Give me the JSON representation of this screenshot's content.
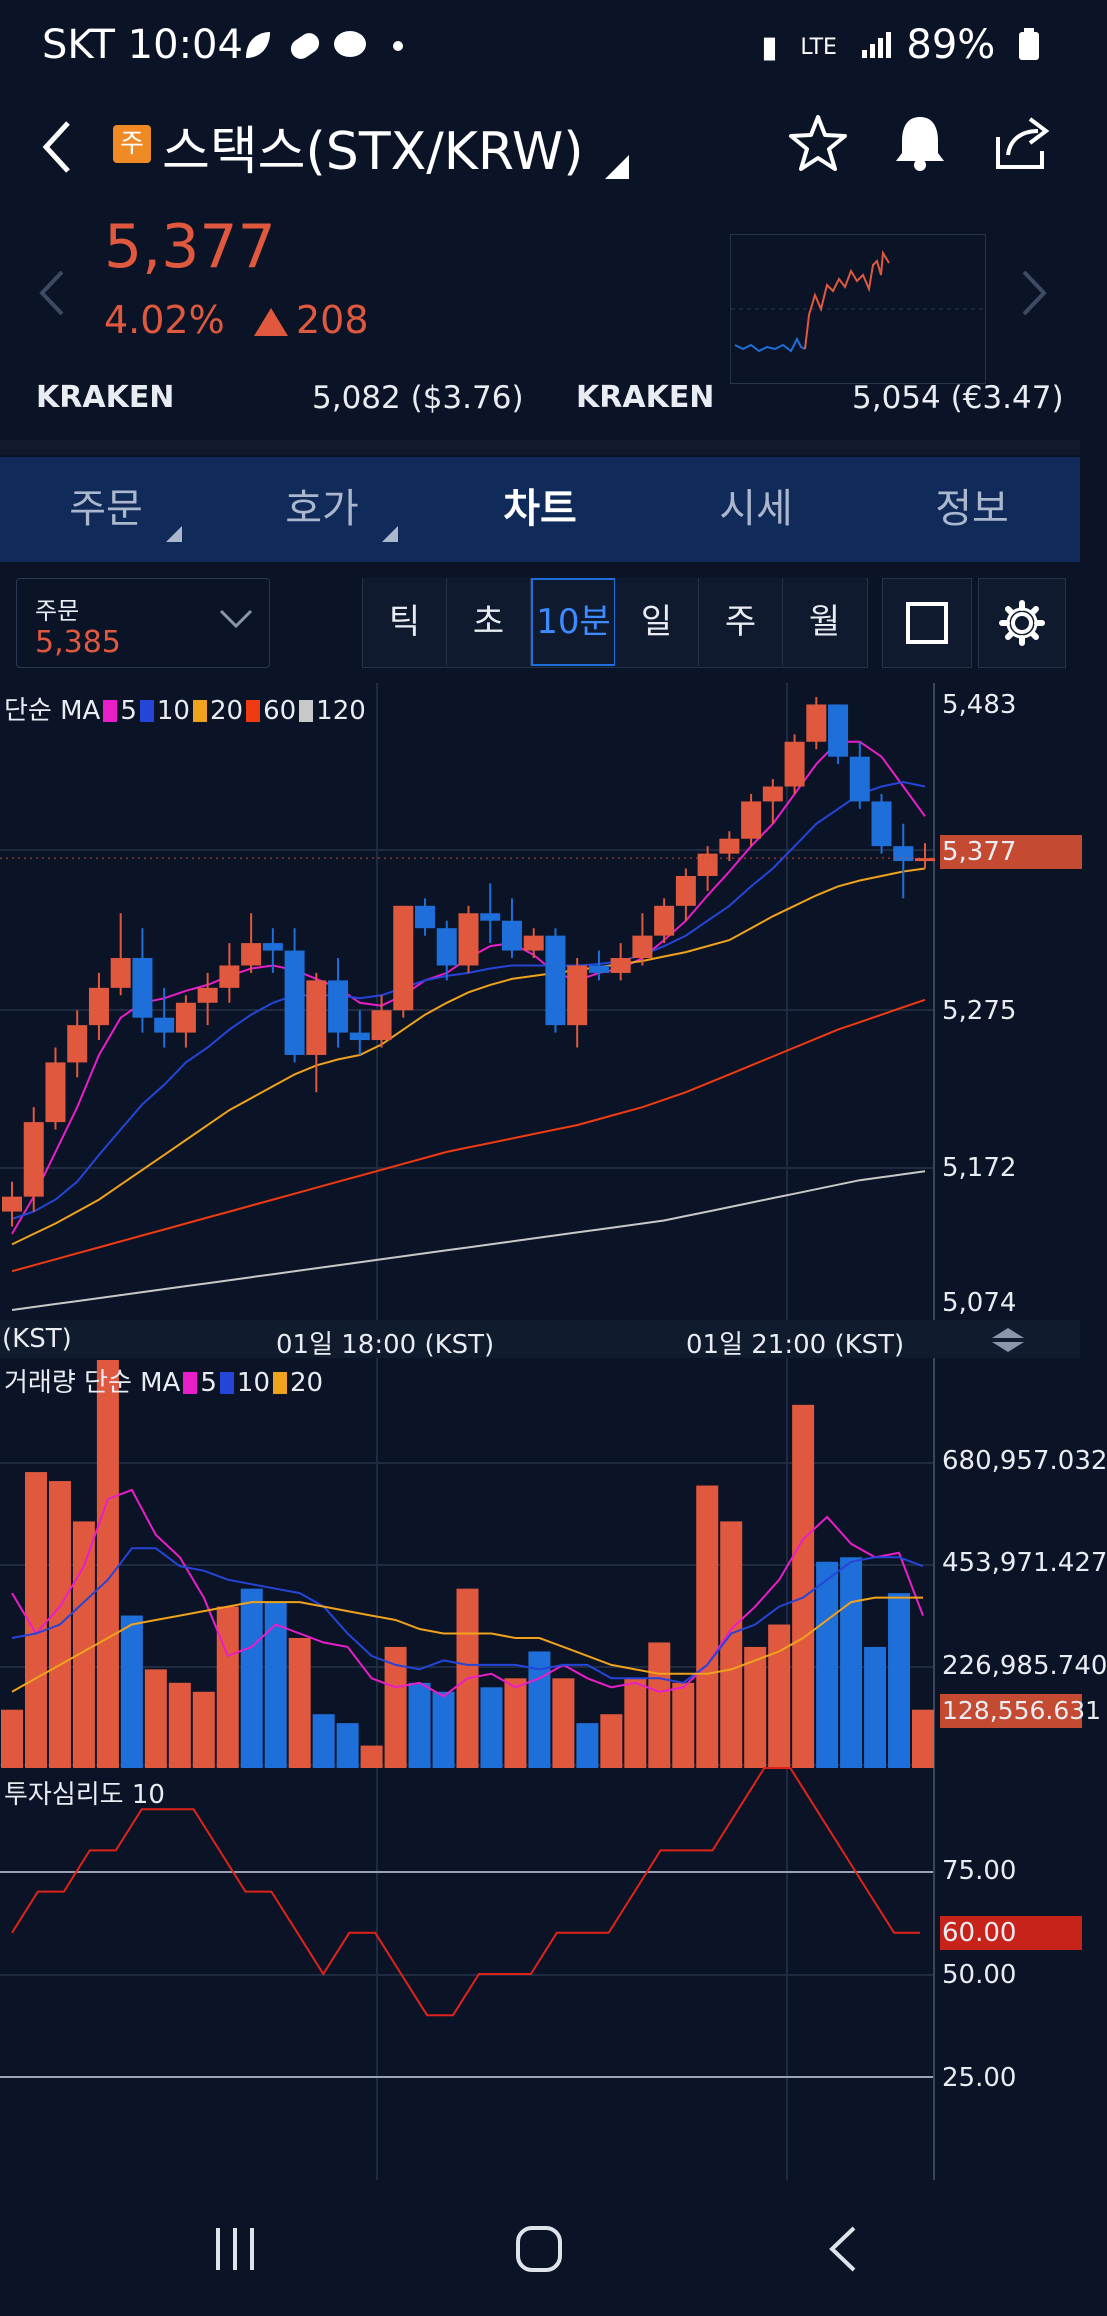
{
  "status": {
    "carrier_time": "SKT 10:04",
    "network": "LTE",
    "battery": "89%"
  },
  "header": {
    "badge": "주",
    "title": "스택스(STX/KRW)"
  },
  "quote": {
    "price": "5,377",
    "change_pct": "4.02%",
    "change_abs": "208"
  },
  "exchanges": [
    {
      "name": "KRAKEN",
      "value": "5,082 ($3.76)"
    },
    {
      "name": "KRAKEN",
      "value": "5,054 (€3.47)"
    }
  ],
  "tabs": [
    {
      "label": "주문"
    },
    {
      "label": "호가"
    },
    {
      "label": "차트"
    },
    {
      "label": "시세"
    },
    {
      "label": "정보"
    }
  ],
  "toolbar": {
    "order_label": "주문",
    "order_price": "5,385",
    "periods": [
      "틱",
      "초",
      "10분",
      "일",
      "주",
      "월"
    ],
    "selected_period": "10분"
  },
  "colors": {
    "up": "#e0593f",
    "down": "#1e6fd9",
    "ma5": "#e91ec9",
    "ma10": "#2545d8",
    "ma20": "#f0a21c",
    "ma60": "#f03a12",
    "ma120": "#c8c8c8"
  },
  "chart_data": [
    {
      "type": "candlestick",
      "legend": {
        "prefix": "단순 MA",
        "items": [
          "5",
          "10",
          "20",
          "60",
          "120"
        ]
      },
      "yticks": [
        "5,483",
        "5,275",
        "5,172",
        "5,074"
      ],
      "current_label": "5,377",
      "ylim": [
        5074,
        5483
      ],
      "xticks": [
        "(KST)",
        "01일 18:00 (KST)",
        "01일 21:00 (KST)"
      ],
      "candles": [
        [
          5140,
          5160,
          5130,
          5150
        ],
        [
          5150,
          5210,
          5140,
          5200
        ],
        [
          5200,
          5250,
          5195,
          5240
        ],
        [
          5240,
          5275,
          5230,
          5265
        ],
        [
          5265,
          5300,
          5255,
          5290
        ],
        [
          5290,
          5340,
          5285,
          5310
        ],
        [
          5310,
          5330,
          5260,
          5270
        ],
        [
          5270,
          5290,
          5250,
          5260
        ],
        [
          5260,
          5285,
          5250,
          5280
        ],
        [
          5280,
          5300,
          5265,
          5290
        ],
        [
          5290,
          5320,
          5280,
          5305
        ],
        [
          5305,
          5340,
          5300,
          5320
        ],
        [
          5320,
          5330,
          5300,
          5315
        ],
        [
          5315,
          5330,
          5240,
          5245
        ],
        [
          5245,
          5300,
          5220,
          5295
        ],
        [
          5295,
          5310,
          5250,
          5260
        ],
        [
          5260,
          5275,
          5245,
          5255
        ],
        [
          5255,
          5285,
          5250,
          5275
        ],
        [
          5275,
          5345,
          5270,
          5345
        ],
        [
          5345,
          5350,
          5325,
          5330
        ],
        [
          5330,
          5335,
          5295,
          5305
        ],
        [
          5305,
          5345,
          5300,
          5340
        ],
        [
          5340,
          5360,
          5320,
          5335
        ],
        [
          5335,
          5350,
          5310,
          5315
        ],
        [
          5315,
          5330,
          5310,
          5325
        ],
        [
          5325,
          5330,
          5260,
          5265
        ],
        [
          5265,
          5310,
          5250,
          5305
        ],
        [
          5305,
          5315,
          5295,
          5300
        ],
        [
          5300,
          5320,
          5295,
          5310
        ],
        [
          5310,
          5340,
          5305,
          5325
        ],
        [
          5325,
          5350,
          5320,
          5345
        ],
        [
          5345,
          5370,
          5335,
          5365
        ],
        [
          5365,
          5385,
          5355,
          5380
        ],
        [
          5380,
          5395,
          5375,
          5390
        ],
        [
          5390,
          5420,
          5385,
          5415
        ],
        [
          5415,
          5430,
          5400,
          5425
        ],
        [
          5425,
          5460,
          5420,
          5455
        ],
        [
          5455,
          5485,
          5450,
          5480
        ],
        [
          5480,
          5480,
          5440,
          5445
        ],
        [
          5445,
          5455,
          5410,
          5415
        ],
        [
          5415,
          5420,
          5380,
          5385
        ],
        [
          5385,
          5400,
          5350,
          5375
        ],
        [
          5375,
          5387,
          5370,
          5377
        ]
      ],
      "ma": {
        "5": [
          5125,
          5150,
          5180,
          5210,
          5245,
          5270,
          5280,
          5283,
          5288,
          5292,
          5298,
          5303,
          5305,
          5302,
          5296,
          5290,
          5280,
          5278,
          5285,
          5295,
          5300,
          5310,
          5318,
          5320,
          5312,
          5300,
          5295,
          5300,
          5303,
          5310,
          5322,
          5335,
          5352,
          5368,
          5385,
          5400,
          5420,
          5440,
          5455,
          5455,
          5445,
          5425,
          5405
        ],
        "10": [
          5135,
          5140,
          5148,
          5160,
          5178,
          5195,
          5212,
          5225,
          5240,
          5250,
          5262,
          5272,
          5280,
          5285,
          5285,
          5285,
          5283,
          5285,
          5290,
          5295,
          5298,
          5300,
          5303,
          5305,
          5305,
          5305,
          5305,
          5306,
          5308,
          5312,
          5318,
          5325,
          5335,
          5345,
          5358,
          5370,
          5385,
          5400,
          5410,
          5420,
          5425,
          5428,
          5425
        ],
        "20": [
          5118,
          5125,
          5132,
          5140,
          5148,
          5158,
          5168,
          5178,
          5188,
          5198,
          5208,
          5216,
          5224,
          5232,
          5238,
          5242,
          5245,
          5252,
          5262,
          5272,
          5280,
          5287,
          5292,
          5296,
          5298,
          5300,
          5302,
          5304,
          5306,
          5308,
          5311,
          5314,
          5318,
          5322,
          5330,
          5338,
          5345,
          5352,
          5358,
          5362,
          5365,
          5368,
          5370
        ],
        "60": [
          5100,
          5104,
          5108,
          5112,
          5116,
          5120,
          5124,
          5128,
          5132,
          5136,
          5140,
          5144,
          5148,
          5152,
          5156,
          5160,
          5164,
          5168,
          5172,
          5176,
          5180,
          5183,
          5186,
          5189,
          5192,
          5195,
          5198,
          5202,
          5206,
          5210,
          5215,
          5220,
          5226,
          5232,
          5238,
          5244,
          5250,
          5256,
          5262,
          5267,
          5272,
          5277,
          5282
        ],
        "120": [
          5074,
          5076,
          5078,
          5080,
          5082,
          5084,
          5086,
          5088,
          5090,
          5092,
          5094,
          5096,
          5098,
          5100,
          5102,
          5104,
          5106,
          5108,
          5110,
          5112,
          5114,
          5116,
          5118,
          5120,
          5122,
          5124,
          5126,
          5128,
          5130,
          5132,
          5134,
          5137,
          5140,
          5143,
          5146,
          5149,
          5152,
          5155,
          5158,
          5161,
          5163,
          5165,
          5167
        ]
      }
    },
    {
      "type": "bar",
      "legend": {
        "prefix": "거래량 단순 MA",
        "items": [
          "5",
          "10",
          "20"
        ]
      },
      "yticks": [
        "680,957.032",
        "453,971.427",
        "226,985.740"
      ],
      "current_label": "128,556.631",
      "ylim": [
        0,
        910000
      ],
      "values": [
        130000,
        660000,
        640000,
        550000,
        910000,
        340000,
        220000,
        190000,
        170000,
        360000,
        400000,
        370000,
        290000,
        120000,
        100000,
        50000,
        270000,
        190000,
        170000,
        400000,
        180000,
        200000,
        260000,
        200000,
        100000,
        120000,
        200000,
        280000,
        190000,
        630000,
        550000,
        270000,
        320000,
        810000,
        460000,
        470000,
        270000,
        390000,
        130000
      ],
      "ma": {
        "5": [
          390000,
          300000,
          360000,
          450000,
          600000,
          620000,
          520000,
          470000,
          380000,
          250000,
          270000,
          320000,
          300000,
          280000,
          270000,
          200000,
          180000,
          190000,
          160000,
          200000,
          210000,
          180000,
          200000,
          230000,
          200000,
          180000,
          190000,
          170000,
          180000,
          230000,
          310000,
          360000,
          420000,
          510000,
          560000,
          500000,
          470000,
          480000,
          340000
        ],
        "10": [
          290000,
          300000,
          320000,
          370000,
          420000,
          490000,
          490000,
          450000,
          440000,
          420000,
          410000,
          400000,
          390000,
          360000,
          300000,
          250000,
          230000,
          220000,
          240000,
          230000,
          230000,
          230000,
          220000,
          230000,
          230000,
          200000,
          200000,
          200000,
          190000,
          230000,
          300000,
          320000,
          360000,
          380000,
          420000,
          460000,
          470000,
          470000,
          450000
        ],
        "20": [
          170000,
          200000,
          230000,
          260000,
          290000,
          320000,
          330000,
          340000,
          350000,
          360000,
          370000,
          370000,
          370000,
          360000,
          350000,
          340000,
          330000,
          310000,
          300000,
          300000,
          300000,
          290000,
          290000,
          270000,
          250000,
          230000,
          220000,
          210000,
          210000,
          210000,
          220000,
          240000,
          260000,
          290000,
          330000,
          370000,
          380000,
          380000,
          380000
        ]
      }
    },
    {
      "type": "line",
      "legend": {
        "prefix": "투자심리도 10"
      },
      "yticks": [
        "75.00",
        "50.00",
        "25.00"
      ],
      "current_label": "60.00",
      "ylim": [
        0,
        100
      ],
      "values": [
        60,
        70,
        70,
        80,
        80,
        90,
        90,
        90,
        80,
        70,
        70,
        60,
        50,
        60,
        60,
        50,
        40,
        40,
        50,
        50,
        50,
        60,
        60,
        60,
        70,
        80,
        80,
        80,
        90,
        100,
        100,
        90,
        80,
        70,
        60,
        60
      ]
    }
  ],
  "nav": {
    "recents": "|||",
    "home": "◯",
    "back": "<"
  }
}
